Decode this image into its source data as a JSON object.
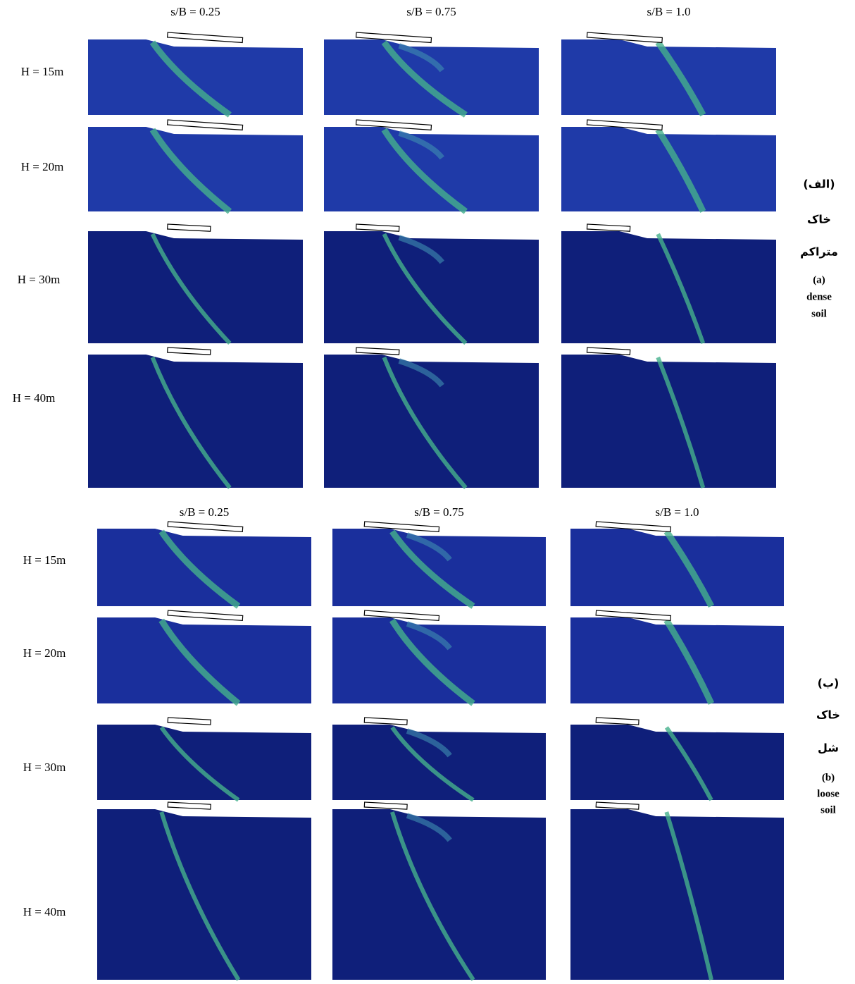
{
  "sections": [
    {
      "columns": [
        "s/B = 0.25",
        "s/B = 0.75",
        "s/B = 1.0"
      ],
      "rows": [
        "H = 15m",
        "H = 20m",
        "H = 30m",
        "H = 40m"
      ],
      "label_fa": [
        "(الف)",
        "خاک",
        "متراکم"
      ],
      "label_en": [
        "(a)",
        "dense",
        "soil"
      ]
    },
    {
      "columns": [
        "s/B = 0.25",
        "s/B = 0.75",
        "s/B = 1.0"
      ],
      "rows": [
        "H = 15m",
        "H = 20m",
        "H = 30m",
        "H = 40m"
      ],
      "label_fa": [
        "(ب)",
        "خاک",
        "شل"
      ],
      "label_en": [
        "(b)",
        "loose",
        "soil"
      ]
    }
  ]
}
